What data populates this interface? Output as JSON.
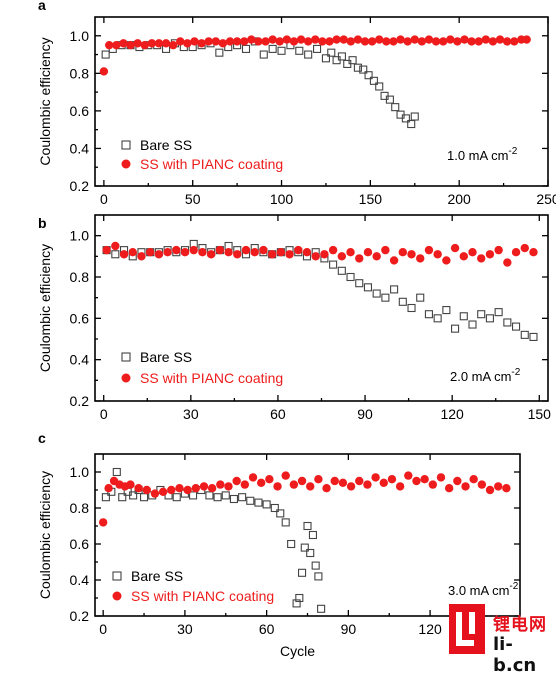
{
  "chart_data": [
    {
      "panel": "a",
      "type": "scatter",
      "ylabel": "Coulombic efficiency",
      "xlabel": "",
      "xlim": [
        -5,
        250
      ],
      "ylim": [
        0.2,
        1.1
      ],
      "xticks": [
        0,
        50,
        100,
        150,
        200,
        250
      ],
      "yticks": [
        0.2,
        0.4,
        0.6,
        0.8,
        1.0
      ],
      "ytick_labels": [
        "0.2",
        "0.4",
        "0.6",
        "0.8",
        "1.0"
      ],
      "annotation": "1.0 mA cm",
      "annotation_sup": "-2",
      "legend": [
        "Bare SS",
        "SS with PIANC coating"
      ],
      "series": [
        {
          "name": "Bare SS",
          "marker": "open-square",
          "color": "#444444",
          "x": [
            1,
            5,
            10,
            15,
            20,
            25,
            30,
            35,
            40,
            45,
            50,
            55,
            60,
            65,
            70,
            75,
            80,
            85,
            90,
            95,
            100,
            105,
            110,
            115,
            120,
            125,
            128,
            131,
            134,
            137,
            140,
            143,
            146,
            149,
            152,
            155,
            158,
            161,
            164,
            167,
            170,
            173,
            175
          ],
          "y": [
            0.9,
            0.93,
            0.95,
            0.95,
            0.94,
            0.95,
            0.95,
            0.93,
            0.96,
            0.94,
            0.94,
            0.95,
            0.96,
            0.91,
            0.94,
            0.95,
            0.93,
            0.97,
            0.9,
            0.93,
            0.92,
            0.95,
            0.92,
            0.9,
            0.93,
            0.88,
            0.91,
            0.87,
            0.89,
            0.85,
            0.87,
            0.83,
            0.82,
            0.79,
            0.76,
            0.73,
            0.68,
            0.66,
            0.62,
            0.58,
            0.56,
            0.53,
            0.57
          ]
        },
        {
          "name": "SS with PIANC coating",
          "marker": "filled-circle",
          "color": "#ee1c1c",
          "x": [
            0,
            3,
            7,
            11,
            15,
            19,
            23,
            27,
            31,
            35,
            39,
            43,
            47,
            51,
            55,
            59,
            63,
            67,
            71,
            75,
            79,
            83,
            87,
            91,
            95,
            99,
            103,
            107,
            111,
            115,
            119,
            123,
            127,
            131,
            135,
            139,
            143,
            147,
            151,
            155,
            159,
            163,
            167,
            171,
            175,
            179,
            183,
            187,
            191,
            195,
            199,
            203,
            207,
            211,
            215,
            219,
            223,
            227,
            231,
            235,
            238
          ],
          "y": [
            0.81,
            0.95,
            0.95,
            0.96,
            0.95,
            0.96,
            0.95,
            0.96,
            0.96,
            0.96,
            0.95,
            0.97,
            0.96,
            0.97,
            0.96,
            0.97,
            0.97,
            0.96,
            0.97,
            0.97,
            0.97,
            0.98,
            0.97,
            0.97,
            0.98,
            0.97,
            0.98,
            0.97,
            0.98,
            0.97,
            0.98,
            0.97,
            0.97,
            0.98,
            0.98,
            0.97,
            0.98,
            0.97,
            0.97,
            0.98,
            0.97,
            0.97,
            0.98,
            0.97,
            0.98,
            0.97,
            0.98,
            0.97,
            0.97,
            0.98,
            0.97,
            0.98,
            0.97,
            0.97,
            0.98,
            0.97,
            0.98,
            0.97,
            0.97,
            0.98,
            0.98
          ]
        }
      ]
    },
    {
      "panel": "b",
      "type": "scatter",
      "ylabel": "Coulombic efficiency",
      "xlabel": "",
      "xlim": [
        -3,
        153
      ],
      "ylim": [
        0.2,
        1.1
      ],
      "xticks": [
        0,
        30,
        60,
        90,
        120,
        150
      ],
      "yticks": [
        0.2,
        0.4,
        0.6,
        0.8,
        1.0
      ],
      "ytick_labels": [
        "0.2",
        "0.4",
        "0.6",
        "0.8",
        "1.0"
      ],
      "annotation": "2.0 mA cm",
      "annotation_sup": "-2",
      "legend": [
        "Bare SS",
        "SS with PIANC coating"
      ],
      "series": [
        {
          "name": "Bare SS",
          "marker": "open-square",
          "color": "#444444",
          "x": [
            1,
            4,
            7,
            10,
            13,
            16,
            19,
            22,
            25,
            28,
            31,
            34,
            37,
            40,
            43,
            46,
            49,
            52,
            55,
            58,
            61,
            64,
            67,
            70,
            73,
            76,
            79,
            82,
            85,
            88,
            91,
            94,
            97,
            100,
            103,
            106,
            109,
            112,
            115,
            118,
            121,
            124,
            127,
            130,
            133,
            136,
            139,
            142,
            145,
            148
          ],
          "y": [
            0.93,
            0.91,
            0.93,
            0.9,
            0.92,
            0.92,
            0.92,
            0.93,
            0.92,
            0.93,
            0.96,
            0.94,
            0.92,
            0.93,
            0.95,
            0.93,
            0.91,
            0.94,
            0.92,
            0.91,
            0.92,
            0.93,
            0.92,
            0.9,
            0.92,
            0.89,
            0.86,
            0.83,
            0.8,
            0.77,
            0.75,
            0.72,
            0.7,
            0.74,
            0.68,
            0.65,
            0.7,
            0.62,
            0.6,
            0.64,
            0.55,
            0.61,
            0.57,
            0.62,
            0.6,
            0.63,
            0.58,
            0.56,
            0.52,
            0.51
          ]
        },
        {
          "name": "SS with PIANC coating",
          "marker": "filled-circle",
          "color": "#ee1c1c",
          "x": [
            1,
            4,
            7,
            10,
            13,
            16,
            19,
            22,
            25,
            28,
            31,
            34,
            37,
            40,
            43,
            46,
            49,
            52,
            55,
            58,
            61,
            64,
            67,
            70,
            73,
            76,
            79,
            82,
            85,
            88,
            91,
            94,
            97,
            100,
            103,
            106,
            109,
            112,
            115,
            118,
            121,
            124,
            127,
            130,
            133,
            136,
            139,
            142,
            145,
            148
          ],
          "y": [
            0.93,
            0.95,
            0.91,
            0.92,
            0.9,
            0.92,
            0.91,
            0.92,
            0.93,
            0.92,
            0.93,
            0.92,
            0.91,
            0.93,
            0.92,
            0.91,
            0.93,
            0.92,
            0.93,
            0.91,
            0.92,
            0.91,
            0.93,
            0.92,
            0.9,
            0.91,
            0.93,
            0.9,
            0.92,
            0.89,
            0.92,
            0.9,
            0.93,
            0.88,
            0.92,
            0.91,
            0.89,
            0.93,
            0.91,
            0.88,
            0.94,
            0.9,
            0.92,
            0.89,
            0.91,
            0.93,
            0.87,
            0.92,
            0.94,
            0.92
          ]
        }
      ]
    },
    {
      "panel": "c",
      "type": "scatter",
      "ylabel": "Coulombic efficiency",
      "xlabel": "Cycle",
      "xlim": [
        -3,
        153
      ],
      "ylim": [
        0.2,
        1.1
      ],
      "xticks": [
        0,
        30,
        60,
        90,
        120
      ],
      "yticks": [
        0.2,
        0.4,
        0.6,
        0.8,
        1.0
      ],
      "ytick_labels": [
        "0.2",
        "0.4",
        "0.6",
        "0.8",
        "1.0"
      ],
      "annotation": "3.0 mA cm",
      "annotation_sup": "-2",
      "legend": [
        "Bare SS",
        "SS with PIANC coating"
      ],
      "series": [
        {
          "name": "Bare SS",
          "marker": "open-square",
          "color": "#444444",
          "x": [
            1,
            3,
            5,
            7,
            9,
            11,
            13,
            15,
            18,
            21,
            24,
            27,
            30,
            33,
            36,
            39,
            42,
            45,
            48,
            51,
            54,
            57,
            60,
            63,
            65,
            67,
            69,
            71,
            72,
            73,
            74,
            75,
            76,
            77,
            78,
            79,
            80
          ],
          "y": [
            0.86,
            0.89,
            1.0,
            0.86,
            0.89,
            0.87,
            0.9,
            0.86,
            0.87,
            0.9,
            0.87,
            0.86,
            0.88,
            0.87,
            0.9,
            0.87,
            0.86,
            0.87,
            0.85,
            0.86,
            0.84,
            0.83,
            0.82,
            0.8,
            0.77,
            0.72,
            0.6,
            0.27,
            0.3,
            0.44,
            0.58,
            0.7,
            0.55,
            0.65,
            0.48,
            0.42,
            0.24
          ]
        },
        {
          "name": "SS with PIANC coating",
          "marker": "filled-circle",
          "color": "#ee1c1c",
          "x": [
            0,
            2,
            4,
            6,
            8,
            10,
            13,
            16,
            19,
            22,
            25,
            28,
            31,
            34,
            37,
            40,
            43,
            46,
            49,
            52,
            55,
            58,
            61,
            64,
            67,
            70,
            73,
            76,
            79,
            82,
            85,
            88,
            91,
            94,
            97,
            100,
            103,
            106,
            109,
            112,
            115,
            118,
            121,
            124,
            127,
            130,
            133,
            136,
            139,
            142,
            145,
            148
          ],
          "y": [
            0.72,
            0.91,
            0.95,
            0.93,
            0.92,
            0.93,
            0.91,
            0.9,
            0.88,
            0.89,
            0.9,
            0.91,
            0.9,
            0.91,
            0.92,
            0.91,
            0.93,
            0.92,
            0.95,
            0.93,
            0.97,
            0.94,
            0.96,
            0.92,
            0.98,
            0.93,
            0.95,
            0.92,
            0.96,
            0.91,
            0.95,
            0.94,
            0.92,
            0.95,
            0.93,
            0.97,
            0.94,
            0.96,
            0.92,
            0.98,
            0.95,
            0.96,
            0.93,
            0.97,
            0.91,
            0.95,
            0.92,
            0.96,
            0.93,
            0.9,
            0.92,
            0.91
          ]
        }
      ]
    }
  ],
  "watermark": {
    "line1": "锂电网",
    "line2": "li-b.cn"
  }
}
